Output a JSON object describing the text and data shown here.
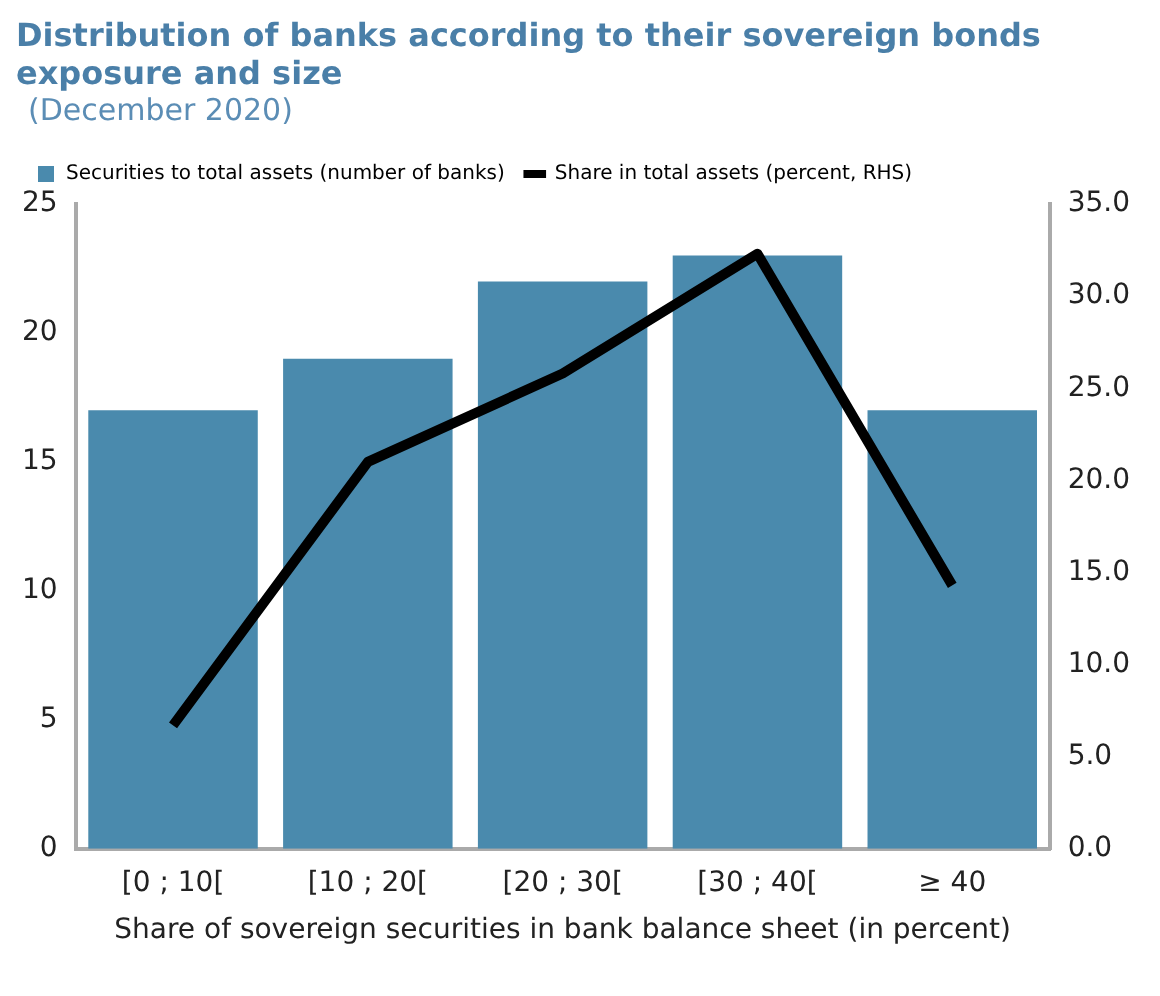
{
  "chart_data": {
    "type": "bar",
    "title": "Distribution of banks according to their sovereign bonds exposure and size",
    "subtitle": "(December 2020)",
    "xlabel": "Share of sovereign securities in bank balance sheet (in percent)",
    "categories": [
      "[0 ; 10[",
      "[10 ; 20[",
      "[20 ; 30[",
      "[30 ; 40[",
      "≥ 40"
    ],
    "series": [
      {
        "name": "Securities to total assets (number of banks)",
        "color": "#4a8aad",
        "values": [
          17,
          19,
          22,
          23,
          17
        ]
      },
      {
        "name": "Share in total assets (percent, RHS)",
        "type": "line",
        "axis": "y2",
        "color": "#000000",
        "values": [
          6.7,
          21.0,
          25.8,
          32.3,
          14.3
        ]
      }
    ],
    "ylim": [
      0,
      25
    ],
    "yticks": [
      0,
      5,
      10,
      15,
      20,
      25
    ],
    "y2lim": [
      0,
      35
    ],
    "y2ticks": [
      {
        "value": 0,
        "label": "0.0"
      },
      {
        "value": 5,
        "label": "5.0"
      },
      {
        "value": 10,
        "label": "10.0"
      },
      {
        "value": 15,
        "label": "15.0"
      },
      {
        "value": 20,
        "label": "20.0"
      },
      {
        "value": 25,
        "label": "25.0"
      },
      {
        "value": 30,
        "label": "30.0"
      },
      {
        "value": 35,
        "label": "35.0"
      }
    ],
    "grid": false,
    "legend": "top left",
    "marker": "none",
    "line_style": "solid"
  }
}
